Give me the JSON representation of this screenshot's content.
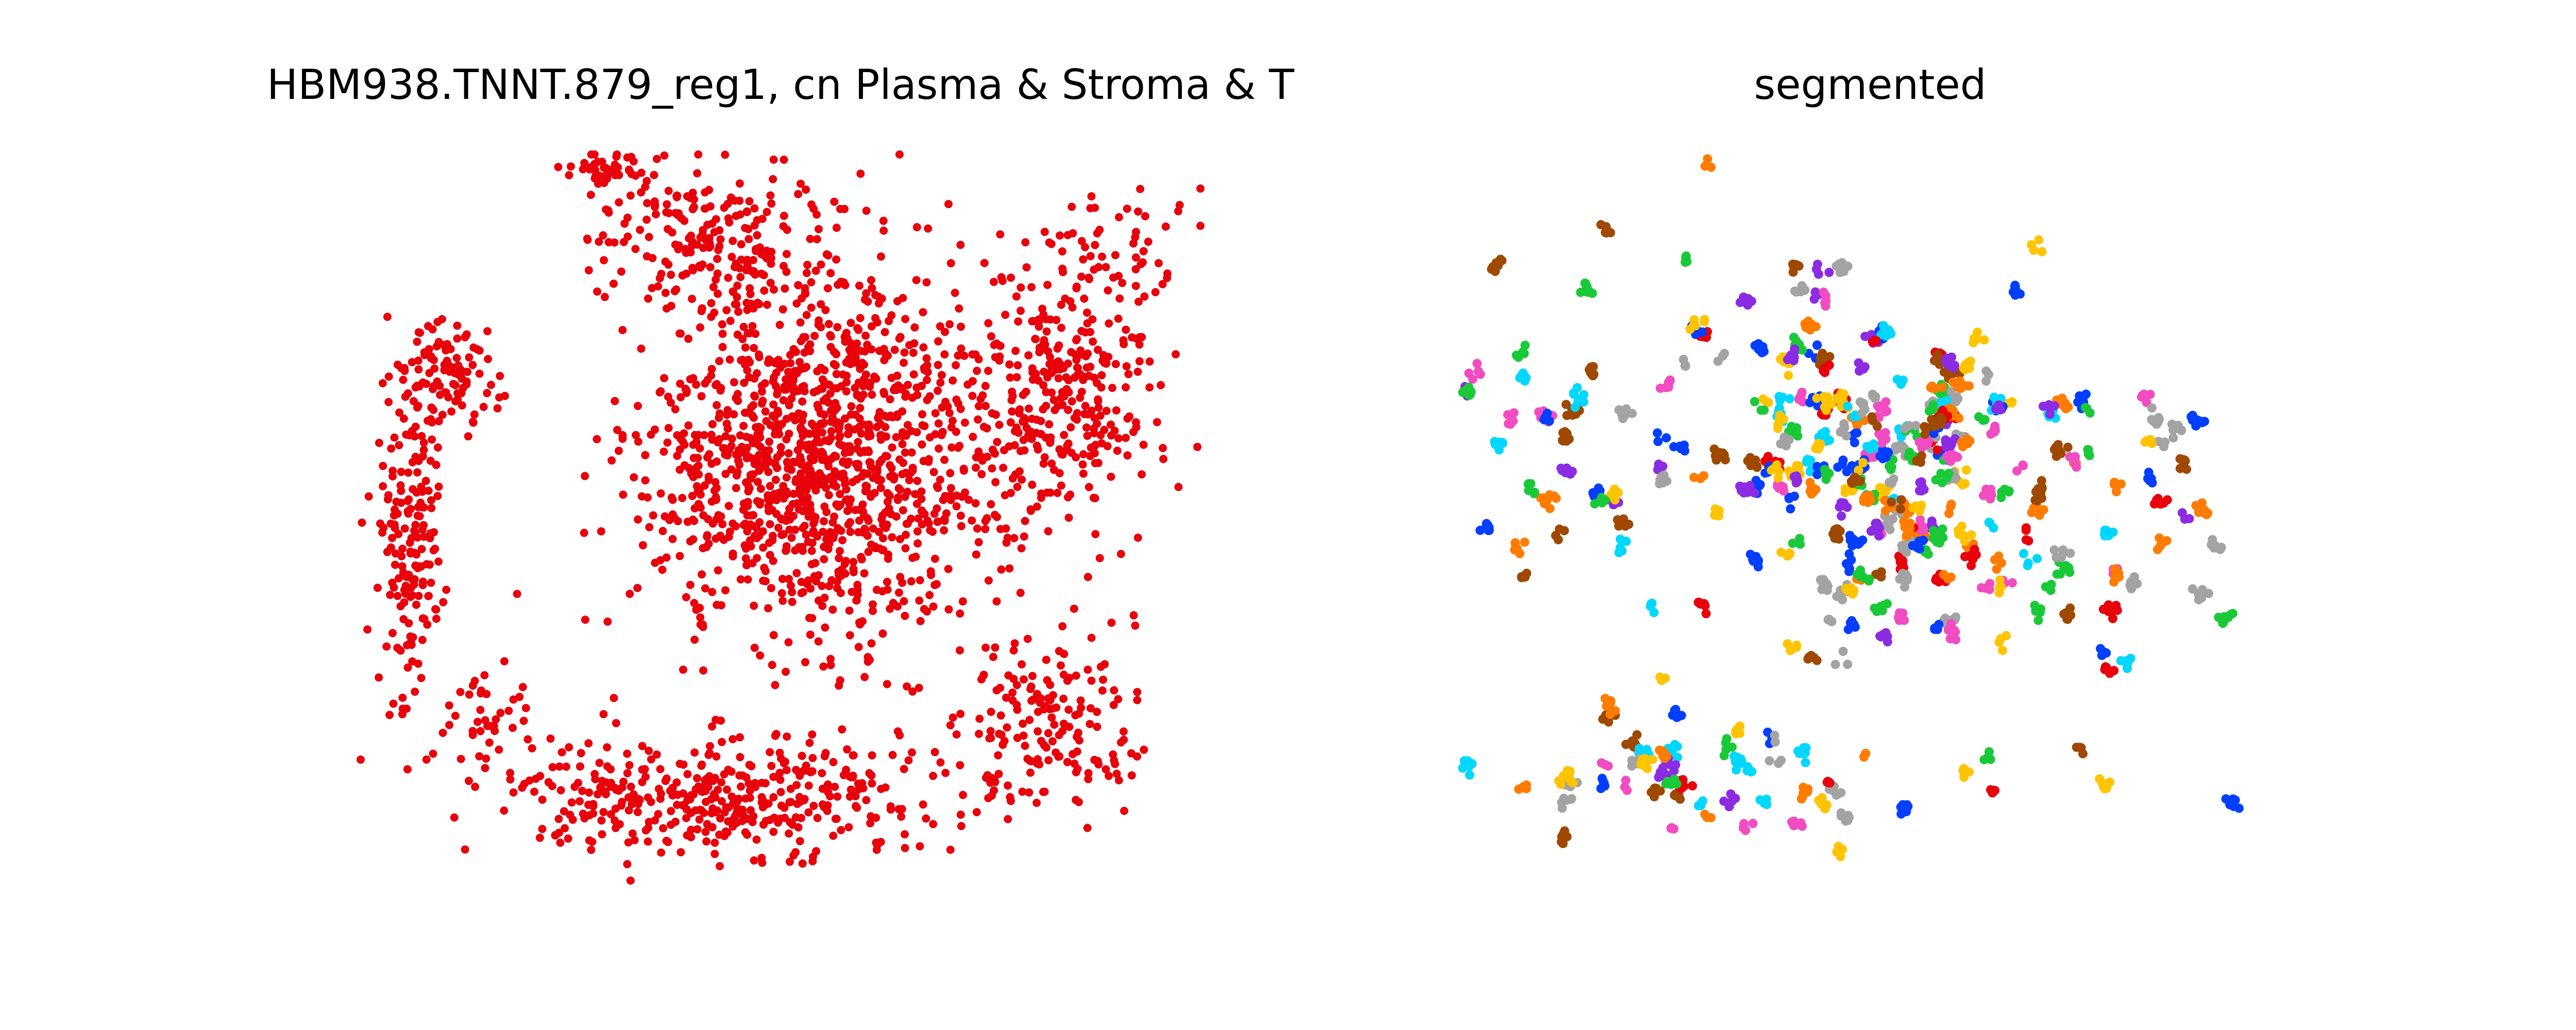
{
  "figure": {
    "panels": [
      {
        "title": "HBM938.TNNT.879_reg1, cn Plasma & Stroma & T"
      },
      {
        "title": "segmented"
      }
    ]
  },
  "chart_data": [
    {
      "type": "scatter",
      "title": "HBM938.TNNT.879_reg1, cn Plasma & Stroma & T",
      "xlabel": "",
      "ylabel": "",
      "axes_visible": false,
      "xlim": [
        0,
        1000
      ],
      "ylim": [
        0,
        1000
      ],
      "point_color": "#e8000b",
      "description": "dense point cloud of cells in neighborhood 'Plasma & Stroma & T'; points generated from density clusters (data units 0-1000, y down)",
      "seed": 11,
      "clusters": [
        {
          "cx": 540,
          "cy": 420,
          "sx": 170,
          "sy": 210,
          "n": 1300
        },
        {
          "cx": 430,
          "cy": 880,
          "sx": 220,
          "sy": 70,
          "n": 420
        },
        {
          "cx": 60,
          "cy": 540,
          "sx": 30,
          "sy": 170,
          "n": 170
        },
        {
          "cx": 100,
          "cy": 300,
          "sx": 60,
          "sy": 70,
          "n": 110
        },
        {
          "cx": 420,
          "cy": 120,
          "sx": 130,
          "sy": 90,
          "n": 200
        },
        {
          "cx": 830,
          "cy": 330,
          "sx": 90,
          "sy": 150,
          "n": 330
        },
        {
          "cx": 820,
          "cy": 780,
          "sx": 100,
          "sy": 100,
          "n": 170
        },
        {
          "cx": 150,
          "cy": 760,
          "sx": 80,
          "sy": 50,
          "n": 40
        },
        {
          "cx": 900,
          "cy": 120,
          "sx": 80,
          "sy": 60,
          "n": 45
        },
        {
          "cx": 300,
          "cy": 20,
          "sx": 40,
          "sy": 15,
          "n": 45
        }
      ]
    },
    {
      "type": "scatter",
      "title": "segmented",
      "xlabel": "",
      "ylabel": "",
      "axes_visible": false,
      "xlim": [
        0,
        1000
      ],
      "ylim": [
        0,
        1000
      ],
      "palette": [
        "#e8000b",
        "#ff7c00",
        "#1ac938",
        "#023eff",
        "#8b2be2",
        "#9f4800",
        "#f14cc1",
        "#a3a3a3",
        "#ffc400",
        "#00d7ff"
      ],
      "description": "segmented cell clusters, each small blob colored by segment id; blobs generated from density (data units 0-1000, y down)",
      "seed": 29,
      "n_blobs": 330,
      "blob_size": [
        3,
        9
      ],
      "regions": [
        {
          "cx": 500,
          "cy": 420,
          "sx": 160,
          "sy": 200,
          "w": 0.62
        },
        {
          "cx": 300,
          "cy": 850,
          "sx": 240,
          "sy": 70,
          "w": 0.14
        },
        {
          "cx": 150,
          "cy": 400,
          "sx": 120,
          "sy": 250,
          "w": 0.12
        },
        {
          "cx": 800,
          "cy": 500,
          "sx": 120,
          "sy": 260,
          "w": 0.12
        }
      ]
    }
  ]
}
